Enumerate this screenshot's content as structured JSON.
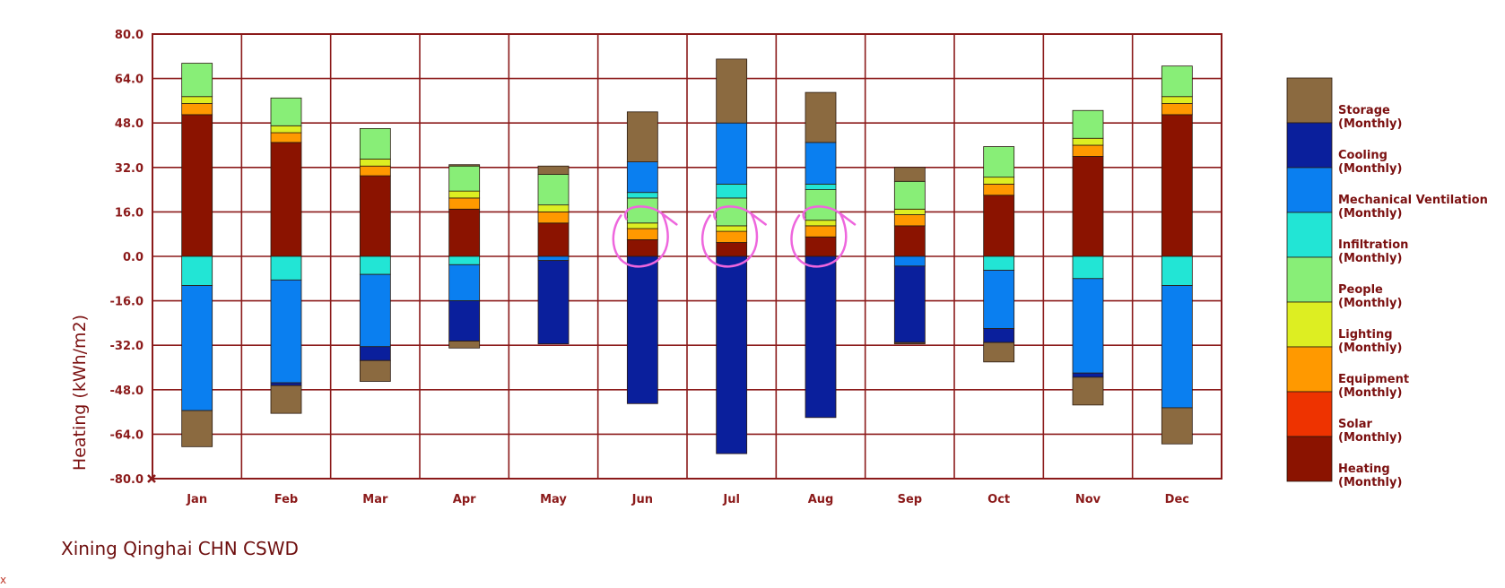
{
  "chart_data": {
    "type": "bar",
    "stacked": true,
    "title": "",
    "ylabel": "Heating (kWh/m2)",
    "xlabel": "",
    "ylim": [
      -80,
      80
    ],
    "yticks": [
      "80.0",
      "64.0",
      "48.0",
      "32.0",
      "16.0",
      "0.0",
      "-16.0",
      "-32.0",
      "-48.0",
      "-64.0",
      "-80.0"
    ],
    "categories": [
      "Jan",
      "Feb",
      "Mar",
      "Apr",
      "May",
      "Jun",
      "Jul",
      "Aug",
      "Sep",
      "Oct",
      "Nov",
      "Dec"
    ],
    "grid": true,
    "legend_position": "right",
    "positive_series": [
      {
        "name": "Heating (Monthly)",
        "color": "#8b1300",
        "values": [
          51,
          41,
          29,
          17,
          12,
          6,
          5,
          7,
          11,
          22,
          36,
          51
        ]
      },
      {
        "name": "Solar (Monthly)",
        "color": "#ee3300",
        "values": [
          0,
          0,
          0,
          0,
          0,
          0,
          0,
          0,
          0,
          0,
          0,
          0
        ]
      },
      {
        "name": "Equipment (Monthly)",
        "color": "#ff9900",
        "values": [
          4,
          3.5,
          3.5,
          4,
          4,
          4,
          4,
          4,
          4,
          4,
          4,
          4
        ]
      },
      {
        "name": "Lighting (Monthly)",
        "color": "#ddee22",
        "values": [
          2.5,
          2.5,
          2.5,
          2.5,
          2.5,
          2,
          2,
          2,
          2,
          2.5,
          2.5,
          2.5
        ]
      },
      {
        "name": "People (Monthly)",
        "color": "#88ee77",
        "values": [
          12,
          10,
          11,
          9,
          11,
          9,
          10,
          11,
          10,
          11,
          10,
          11
        ]
      },
      {
        "name": "Infiltration (Monthly)",
        "color": "#22e5d5",
        "values": [
          0,
          0,
          0,
          0,
          0,
          2,
          5,
          2,
          0,
          0,
          0,
          0
        ]
      },
      {
        "name": "Mechanical Ventilation (Monthly)",
        "color": "#0a7ff0",
        "values": [
          0,
          0,
          0,
          0,
          0,
          11,
          22,
          15,
          0,
          0,
          0,
          0
        ]
      },
      {
        "name": "Cooling (Monthly)",
        "color": "#0a1f9c",
        "values": [
          0,
          0,
          0,
          0,
          0,
          0,
          0,
          0,
          0,
          0,
          0,
          0
        ]
      },
      {
        "name": "Storage (Monthly)",
        "color": "#8b6a40",
        "values": [
          0,
          0,
          0,
          0.5,
          3,
          18,
          23,
          18,
          5,
          0,
          0,
          0
        ]
      }
    ],
    "negative_series": [
      {
        "name": "Infiltration (Monthly)",
        "color": "#22e5d5",
        "values": [
          -10.5,
          -8.5,
          -6.5,
          -3,
          0,
          0,
          0,
          0,
          0,
          -5,
          -8,
          -10.5
        ]
      },
      {
        "name": "Mechanical Ventilation (Monthly)",
        "color": "#0a7ff0",
        "values": [
          -45,
          -37,
          -26,
          -13,
          -1.5,
          0,
          0,
          0,
          -3.5,
          -21,
          -34,
          -44
        ]
      },
      {
        "name": "Cooling (Monthly)",
        "color": "#0a1f9c",
        "values": [
          0,
          -1,
          -5,
          -14.5,
          -30,
          -53,
          -71,
          -58,
          -27.5,
          -5,
          -1.5,
          0
        ]
      },
      {
        "name": "Storage (Monthly)",
        "color": "#8b6a40",
        "values": [
          -13,
          -10,
          -7.5,
          -2.5,
          0,
          0,
          0,
          0,
          -0.5,
          -7,
          -10,
          -13
        ]
      }
    ],
    "legend": [
      {
        "name": "Storage",
        "sub": "(Monthly)",
        "color": "#8b6a40"
      },
      {
        "name": "Cooling",
        "sub": "(Monthly)",
        "color": "#0a1f9c"
      },
      {
        "name": "Mechanical Ventilation",
        "sub": "(Monthly)",
        "color": "#0a7ff0"
      },
      {
        "name": "Infiltration",
        "sub": "(Monthly)",
        "color": "#22e5d5"
      },
      {
        "name": "People",
        "sub": "(Monthly)",
        "color": "#88ee77"
      },
      {
        "name": "Lighting",
        "sub": "(Monthly)",
        "color": "#ddee22"
      },
      {
        "name": "Equipment",
        "sub": "(Monthly)",
        "color": "#ff9900"
      },
      {
        "name": "Solar",
        "sub": "(Monthly)",
        "color": "#ee3300"
      },
      {
        "name": "Heating",
        "sub": "(Monthly)",
        "color": "#8b1300"
      }
    ],
    "annotations": [
      {
        "type": "hand-drawn-circle",
        "category": "Jun",
        "color": "#ee66dd",
        "range": [
          -3,
          16
        ]
      },
      {
        "type": "hand-drawn-circle",
        "category": "Jul",
        "color": "#ee66dd",
        "range": [
          -3,
          16
        ]
      },
      {
        "type": "hand-drawn-circle",
        "category": "Aug",
        "color": "#ee66dd",
        "range": [
          -3,
          16
        ]
      }
    ]
  },
  "location_label": "Xining Qinghai CHN CSWD",
  "corner_mark": "x"
}
